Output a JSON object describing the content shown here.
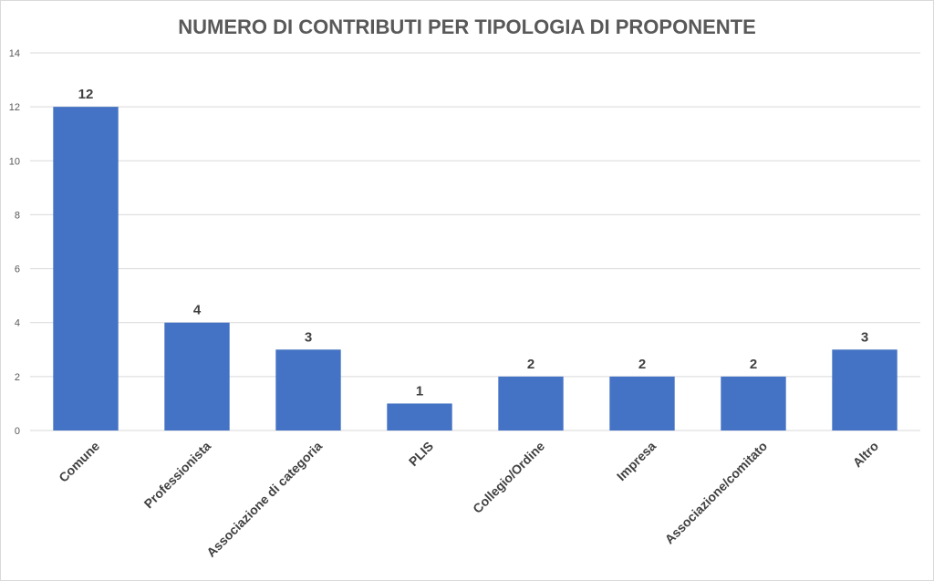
{
  "chart_data": {
    "type": "bar",
    "title": "NUMERO DI CONTRIBUTI PER TIPOLOGIA DI PROPONENTE",
    "xlabel": "",
    "ylabel": "",
    "ylim": [
      0,
      14
    ],
    "yticks": [
      0,
      2,
      4,
      6,
      8,
      10,
      12,
      14
    ],
    "grid": true,
    "legend": "none",
    "bar_color": "#4472C4",
    "categories": [
      "Comune",
      "Professionista",
      "Associazione di categoria",
      "PLIS",
      "Collegio/Ordine",
      "Impresa",
      "Associazione/comitato",
      "Altro"
    ],
    "values": [
      12,
      4,
      3,
      1,
      2,
      2,
      2,
      3
    ]
  }
}
